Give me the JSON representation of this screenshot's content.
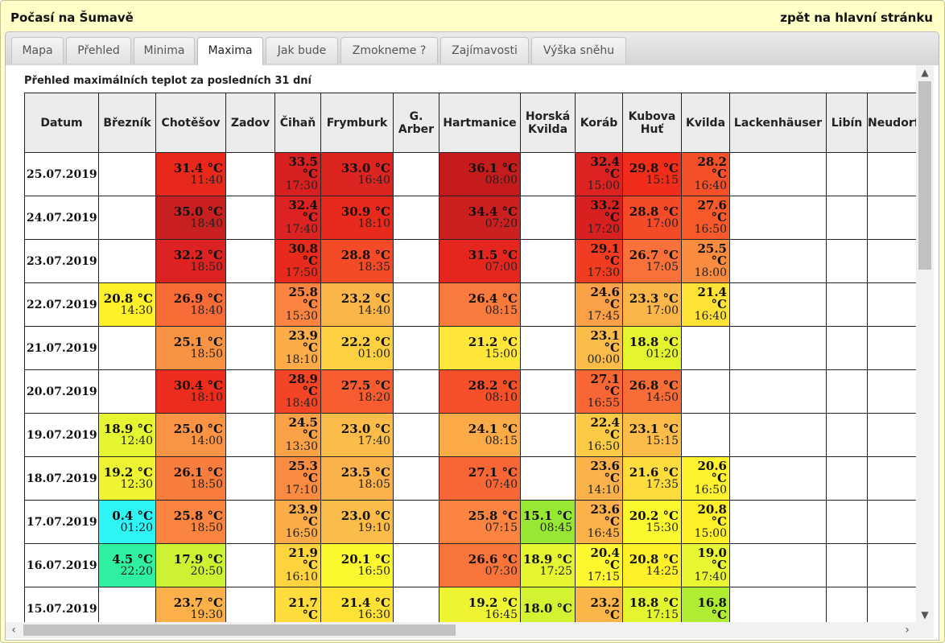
{
  "header": {
    "title": "Počasí na Šumavě",
    "back_link": "zpět na hlavní stránku"
  },
  "tabs": [
    {
      "label": "Mapa",
      "active": false
    },
    {
      "label": "Přehled",
      "active": false
    },
    {
      "label": "Minima",
      "active": false
    },
    {
      "label": "Maxima",
      "active": true
    },
    {
      "label": "Jak bude",
      "active": false
    },
    {
      "label": "Zmokneme ?",
      "active": false
    },
    {
      "label": "Zajímavosti",
      "active": false
    },
    {
      "label": "Výška sněhu",
      "active": false
    }
  ],
  "caption": "Přehled maximálních teplot za posledních 31 dní",
  "table": {
    "columns": [
      "Datum",
      "Březník",
      "Chotěšov",
      "Zadov",
      "Čihaň",
      "Frymburk",
      "G. Arber",
      "Hartmanice",
      "Horská Kvilda",
      "Koráb",
      "Kubova Huť",
      "Kvilda",
      "Lackenhäuser",
      "Libín",
      "Neudorf"
    ],
    "rows": [
      {
        "date": "25.07.2019",
        "cells": [
          null,
          {
            "v": "31.4 °C",
            "t": "11:40",
            "c": "#e8281a"
          },
          null,
          {
            "v": "33.5 °C",
            "t": "17:30",
            "c": "#d82020"
          },
          {
            "v": "33.0 °C",
            "t": "16:40",
            "c": "#dc2420"
          },
          null,
          {
            "v": "36.1 °C",
            "t": "08:00",
            "c": "#c41c1c"
          },
          null,
          {
            "v": "32.4 °C",
            "t": "15:00",
            "c": "#dd2222"
          },
          {
            "v": "29.8 °C",
            "t": "15:15",
            "c": "#f02d1a"
          },
          {
            "v": "28.2 °C",
            "t": "16:40",
            "c": "#f5502a"
          },
          null,
          null,
          null
        ]
      },
      {
        "date": "24.07.2019",
        "cells": [
          null,
          {
            "v": "35.0 °C",
            "t": "18:40",
            "c": "#c82020"
          },
          null,
          {
            "v": "32.4 °C",
            "t": "17:40",
            "c": "#dd2222"
          },
          {
            "v": "30.9 °C",
            "t": "18:10",
            "c": "#e82a1c"
          },
          null,
          {
            "v": "34.4 °C",
            "t": "07:20",
            "c": "#cc2020"
          },
          null,
          {
            "v": "33.2 °C",
            "t": "17:20",
            "c": "#d82020"
          },
          {
            "v": "28.8 °C",
            "t": "17:00",
            "c": "#f44a28"
          },
          {
            "v": "27.6 °C",
            "t": "16:50",
            "c": "#f65a2a"
          },
          null,
          null,
          null
        ]
      },
      {
        "date": "23.07.2019",
        "cells": [
          null,
          {
            "v": "32.2 °C",
            "t": "18:50",
            "c": "#dd2222"
          },
          null,
          {
            "v": "30.8 °C",
            "t": "17:50",
            "c": "#e82a1c"
          },
          {
            "v": "28.8 °C",
            "t": "18:35",
            "c": "#f44a28"
          },
          null,
          {
            "v": "31.5 °C",
            "t": "07:00",
            "c": "#e4261e"
          },
          null,
          {
            "v": "29.1 °C",
            "t": "17:30",
            "c": "#f23c22"
          },
          {
            "v": "26.7 °C",
            "t": "17:05",
            "c": "#f8703a"
          },
          {
            "v": "25.5 °C",
            "t": "18:00",
            "c": "#fa8c40"
          },
          null,
          null,
          null
        ]
      },
      {
        "date": "22.07.2019",
        "cells": [
          {
            "v": "20.8 °C",
            "t": "14:30",
            "c": "#fff02a"
          },
          {
            "v": "26.9 °C",
            "t": "18:40",
            "c": "#f86a36"
          },
          null,
          {
            "v": "25.8 °C",
            "t": "15:30",
            "c": "#fa8440"
          },
          {
            "v": "23.2 °C",
            "t": "14:40",
            "c": "#fbb64a"
          },
          null,
          {
            "v": "26.4 °C",
            "t": "08:15",
            "c": "#f87a3c"
          },
          null,
          {
            "v": "24.6 °C",
            "t": "17:45",
            "c": "#faa046"
          },
          {
            "v": "23.3 °C",
            "t": "17:00",
            "c": "#fbb64a"
          },
          {
            "v": "21.4 °C",
            "t": "16:40",
            "c": "#ffe236"
          },
          null,
          null,
          null
        ]
      },
      {
        "date": "21.07.2019",
        "cells": [
          null,
          {
            "v": "25.1 °C",
            "t": "18:50",
            "c": "#fa9244"
          },
          null,
          {
            "v": "23.9 °C",
            "t": "18:10",
            "c": "#fbac48"
          },
          {
            "v": "22.2 °C",
            "t": "01:00",
            "c": "#fcd040"
          },
          null,
          {
            "v": "21.2 °C",
            "t": "15:00",
            "c": "#ffe638"
          },
          null,
          {
            "v": "23.1 °C",
            "t": "00:00",
            "c": "#fbbc4a"
          },
          {
            "v": "18.8 °C",
            "t": "01:20",
            "c": "#e4f530"
          },
          null,
          null,
          null,
          null
        ]
      },
      {
        "date": "20.07.2019",
        "cells": [
          null,
          {
            "v": "30.4 °C",
            "t": "18:10",
            "c": "#ec2c1c"
          },
          null,
          {
            "v": "28.9 °C",
            "t": "18:40",
            "c": "#f44426"
          },
          {
            "v": "27.5 °C",
            "t": "18:20",
            "c": "#f65c30"
          },
          null,
          {
            "v": "28.2 °C",
            "t": "08:10",
            "c": "#f5502a"
          },
          null,
          {
            "v": "27.1 °C",
            "t": "16:55",
            "c": "#f86636"
          },
          {
            "v": "26.8 °C",
            "t": "14:50",
            "c": "#f86c38"
          },
          null,
          null,
          null,
          null
        ]
      },
      {
        "date": "19.07.2019",
        "cells": [
          {
            "v": "18.9 °C",
            "t": "12:40",
            "c": "#e6f532"
          },
          {
            "v": "25.0 °C",
            "t": "14:00",
            "c": "#fa9444"
          },
          null,
          {
            "v": "24.5 °C",
            "t": "13:30",
            "c": "#faa046"
          },
          {
            "v": "23.0 °C",
            "t": "17:40",
            "c": "#fbbc4a"
          },
          null,
          {
            "v": "24.1 °C",
            "t": "08:15",
            "c": "#fbaa48"
          },
          null,
          {
            "v": "22.4 °C",
            "t": "16:50",
            "c": "#fcca44"
          },
          {
            "v": "23.1 °C",
            "t": "15:15",
            "c": "#fbbc4a"
          },
          null,
          null,
          null,
          null
        ]
      },
      {
        "date": "18.07.2019",
        "cells": [
          {
            "v": "19.2 °C",
            "t": "12:30",
            "c": "#eef432"
          },
          {
            "v": "26.1 °C",
            "t": "18:50",
            "c": "#f87c3c"
          },
          null,
          {
            "v": "25.3 °C",
            "t": "17:10",
            "c": "#fa8c42"
          },
          {
            "v": "23.5 °C",
            "t": "18:05",
            "c": "#fbb24a"
          },
          null,
          {
            "v": "27.1 °C",
            "t": "07:40",
            "c": "#f86636"
          },
          null,
          {
            "v": "23.6 °C",
            "t": "14:10",
            "c": "#fbb24a"
          },
          {
            "v": "21.6 °C",
            "t": "17:35",
            "c": "#fedc3c"
          },
          {
            "v": "20.6 °C",
            "t": "16:50",
            "c": "#fff22e"
          },
          null,
          null,
          null
        ]
      },
      {
        "date": "17.07.2019",
        "cells": [
          {
            "v": "0.4 °C",
            "t": "01:20",
            "c": "#2ef4f4"
          },
          {
            "v": "25.8 °C",
            "t": "18:50",
            "c": "#fa8440"
          },
          null,
          {
            "v": "23.9 °C",
            "t": "16:50",
            "c": "#fbac48"
          },
          {
            "v": "23.0 °C",
            "t": "19:10",
            "c": "#fbbc4a"
          },
          null,
          {
            "v": "25.8 °C",
            "t": "07:15",
            "c": "#fa8440"
          },
          {
            "v": "15.1 °C",
            "t": "08:45",
            "c": "#96e832"
          },
          {
            "v": "23.6 °C",
            "t": "16:45",
            "c": "#fbb24a"
          },
          {
            "v": "20.2 °C",
            "t": "15:30",
            "c": "#fcf830"
          },
          {
            "v": "20.8 °C",
            "t": "15:00",
            "c": "#fff02a"
          },
          null,
          null,
          null
        ]
      },
      {
        "date": "16.07.2019",
        "cells": [
          {
            "v": "4.5 °C",
            "t": "22:20",
            "c": "#2ef0a0"
          },
          {
            "v": "17.9 °C",
            "t": "20:50",
            "c": "#ccf232"
          },
          null,
          {
            "v": "21.9 °C",
            "t": "16:10",
            "c": "#fdd43e"
          },
          {
            "v": "20.1 °C",
            "t": "16:50",
            "c": "#fbf830"
          },
          null,
          {
            "v": "26.6 °C",
            "t": "07:30",
            "c": "#f8743a"
          },
          {
            "v": "18.9 °C",
            "t": "17:25",
            "c": "#e6f532"
          },
          {
            "v": "20.4 °C",
            "t": "17:15",
            "c": "#fef62e"
          },
          {
            "v": "20.8 °C",
            "t": "14:25",
            "c": "#fff02a"
          },
          {
            "v": "19.0 °C",
            "t": "17:40",
            "c": "#e8f532"
          },
          null,
          null,
          null
        ]
      },
      {
        "date": "15.07.2019",
        "cells": [
          null,
          {
            "v": "23.7 °C",
            "t": "19:30",
            "c": "#fbb04a"
          },
          null,
          {
            "v": "21.7 °C",
            "t": "",
            "c": "#fedc3c"
          },
          {
            "v": "21.4 °C",
            "t": "16:30",
            "c": "#ffe236"
          },
          null,
          {
            "v": "19.2 °C",
            "t": "16:45",
            "c": "#eef432"
          },
          {
            "v": "18.0 °C",
            "t": "",
            "c": "#d2f232"
          },
          {
            "v": "23.2 °C",
            "t": "",
            "c": "#fbb64a"
          },
          {
            "v": "18.8 °C",
            "t": "17:15",
            "c": "#e4f530"
          },
          {
            "v": "16.8 °C",
            "t": "",
            "c": "#b0ec32"
          },
          null,
          null,
          null
        ]
      }
    ]
  }
}
